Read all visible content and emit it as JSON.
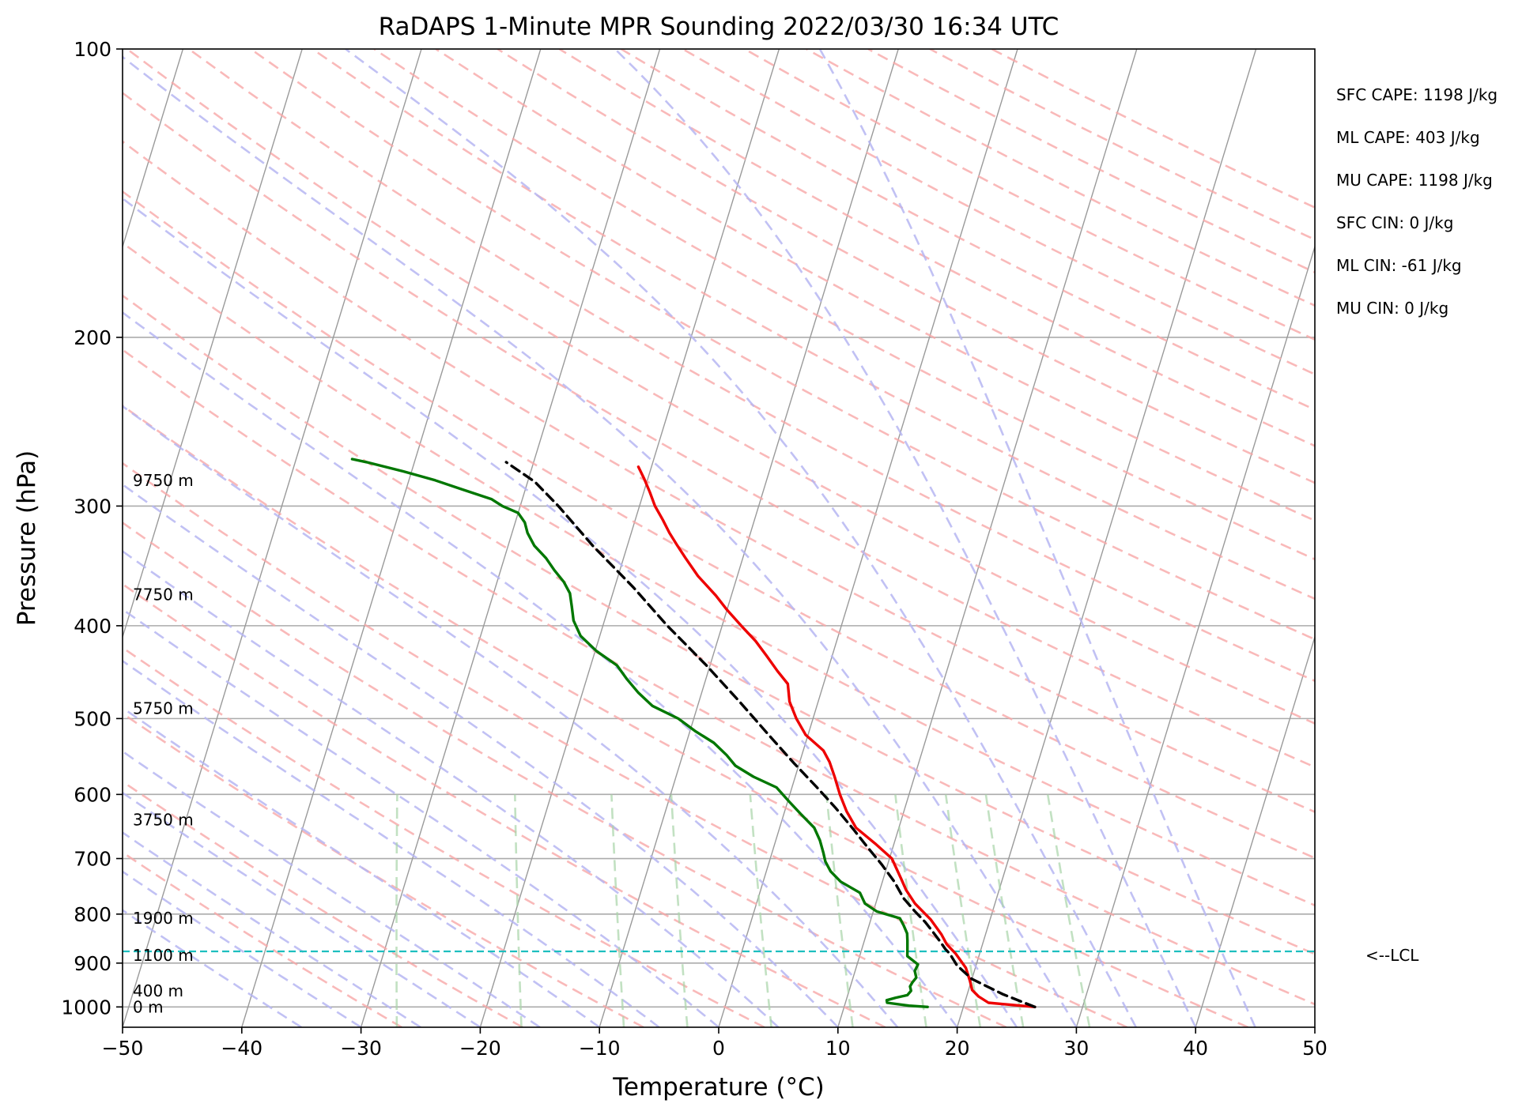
{
  "chart_data": {
    "type": "line",
    "title": "RaDAPS 1-Minute MPR Sounding 2022/03/30 16:34 UTC",
    "xlabel": "Temperature (°C)",
    "ylabel": "Pressure (hPa)",
    "xlim": [
      -50,
      50
    ],
    "ylim": [
      1050,
      100
    ],
    "y_scale": "log",
    "skew": "skew-T log-P",
    "x_ticks": [
      "−50",
      "−40",
      "−30",
      "−20",
      "−10",
      "0",
      "10",
      "20",
      "30",
      "40",
      "50"
    ],
    "y_ticks": [
      "100",
      "200",
      "300",
      "400",
      "500",
      "600",
      "700",
      "800",
      "900",
      "1000"
    ],
    "grid": true,
    "height_labels": [
      {
        "label": "9750 m",
        "p": 282
      },
      {
        "label": "7750 m",
        "p": 371
      },
      {
        "label": "5750 m",
        "p": 488
      },
      {
        "label": "3750 m",
        "p": 638
      },
      {
        "label": "1900 m",
        "p": 808
      },
      {
        "label": "1100 m",
        "p": 883
      },
      {
        "label": "400 m",
        "p": 962
      },
      {
        "label": "0 m",
        "p": 1000
      }
    ],
    "lcl": {
      "label": "<--LCL",
      "p": 875
    },
    "series": [
      {
        "key": "temperature",
        "color": "#ee0000",
        "points": [
          [
            26,
            1000
          ],
          [
            24,
            995
          ],
          [
            22,
            990
          ],
          [
            21,
            975
          ],
          [
            20.3,
            960
          ],
          [
            19.9,
            940
          ],
          [
            19.2,
            910
          ],
          [
            18,
            880
          ],
          [
            17,
            860
          ],
          [
            16.3,
            840
          ],
          [
            15,
            810
          ],
          [
            13.3,
            780
          ],
          [
            12.2,
            755
          ],
          [
            11.5,
            735
          ],
          [
            10.2,
            700
          ],
          [
            8.4,
            675
          ],
          [
            6.4,
            650
          ],
          [
            5.2,
            625
          ],
          [
            4.2,
            600
          ],
          [
            3.3,
            575
          ],
          [
            2.5,
            555
          ],
          [
            1.7,
            540
          ],
          [
            -0.2,
            520
          ],
          [
            -1.4,
            500
          ],
          [
            -2.4,
            480
          ],
          [
            -3,
            460
          ],
          [
            -4.2,
            446
          ],
          [
            -5.5,
            430
          ],
          [
            -6.8,
            415
          ],
          [
            -8.4,
            400
          ],
          [
            -10,
            385
          ],
          [
            -11.3,
            372
          ],
          [
            -13.3,
            355
          ],
          [
            -14.8,
            340
          ],
          [
            -15.8,
            330
          ],
          [
            -16.8,
            320
          ],
          [
            -17.7,
            310
          ],
          [
            -18.7,
            300
          ],
          [
            -19.5,
            290
          ],
          [
            -20.3,
            281
          ],
          [
            -21.1,
            273
          ]
        ]
      },
      {
        "key": "dewpoint",
        "color": "#007700",
        "points": [
          [
            17,
            1000
          ],
          [
            15.4,
            997
          ],
          [
            13.5,
            990
          ],
          [
            13.4,
            984
          ],
          [
            14.1,
            978
          ],
          [
            15,
            972
          ],
          [
            15.2,
            962
          ],
          [
            15,
            952
          ],
          [
            15.1,
            942
          ],
          [
            15.3,
            932
          ],
          [
            15,
            917
          ],
          [
            15.1,
            903
          ],
          [
            14,
            885
          ],
          [
            13.8,
            868
          ],
          [
            13.6,
            852
          ],
          [
            13.4,
            838
          ],
          [
            12.9,
            822
          ],
          [
            12.4,
            808
          ],
          [
            10.3,
            795
          ],
          [
            9.1,
            780
          ],
          [
            8.4,
            760
          ],
          [
            6.5,
            740
          ],
          [
            5.4,
            722
          ],
          [
            4.7,
            705
          ],
          [
            4.3,
            690
          ],
          [
            3.7,
            670
          ],
          [
            2.9,
            650
          ],
          [
            1.5,
            630
          ],
          [
            0.1,
            610
          ],
          [
            -1.3,
            590
          ],
          [
            -3.5,
            575
          ],
          [
            -5.3,
            560
          ],
          [
            -6.3,
            546
          ],
          [
            -7.7,
            530
          ],
          [
            -9.6,
            515
          ],
          [
            -11.3,
            500
          ],
          [
            -13.8,
            485
          ],
          [
            -15.3,
            470
          ],
          [
            -16.6,
            455
          ],
          [
            -17.8,
            440
          ],
          [
            -19.9,
            425
          ],
          [
            -21.6,
            410
          ],
          [
            -22.6,
            395
          ],
          [
            -23.1,
            382
          ],
          [
            -23.6,
            370
          ],
          [
            -24.4,
            360
          ],
          [
            -25.5,
            350
          ],
          [
            -26.5,
            340
          ],
          [
            -27.8,
            330
          ],
          [
            -28.7,
            320
          ],
          [
            -29.2,
            312
          ],
          [
            -30,
            305
          ],
          [
            -31.5,
            300
          ],
          [
            -32.6,
            295
          ],
          [
            -35.4,
            288
          ],
          [
            -37.8,
            282
          ],
          [
            -40.7,
            276
          ],
          [
            -44,
            270
          ],
          [
            -45.3,
            268
          ]
        ]
      },
      {
        "key": "parcel",
        "color": "#000000",
        "points": [
          [
            26,
            1000
          ],
          [
            23,
            970
          ],
          [
            20,
            935
          ],
          [
            18.4,
            905
          ],
          [
            17.5,
            880
          ],
          [
            17,
            870
          ],
          [
            16.4,
            855
          ],
          [
            15.3,
            830
          ],
          [
            14.6,
            815
          ],
          [
            13.5,
            795
          ],
          [
            12.2,
            770
          ],
          [
            11,
            740
          ],
          [
            9.5,
            710
          ],
          [
            7.8,
            680
          ],
          [
            6.2,
            652
          ],
          [
            4.2,
            620
          ],
          [
            2.1,
            590
          ],
          [
            -0.5,
            556
          ],
          [
            -3.3,
            520
          ],
          [
            -6.6,
            480
          ],
          [
            -10.3,
            440
          ],
          [
            -14.6,
            400
          ],
          [
            -18.4,
            365
          ],
          [
            -22.9,
            330
          ],
          [
            -26.8,
            300
          ],
          [
            -29.4,
            283
          ],
          [
            -32.3,
            270
          ]
        ]
      }
    ]
  },
  "stats": [
    {
      "label": "SFC CAPE: 1198 J/kg"
    },
    {
      "label": "ML CAPE: 403 J/kg"
    },
    {
      "label": "MU CAPE: 1198 J/kg"
    },
    {
      "label": "SFC CIN: 0 J/kg"
    },
    {
      "label": "ML CIN: -61 J/kg"
    },
    {
      "label": "MU CIN: 0 J/kg"
    }
  ]
}
